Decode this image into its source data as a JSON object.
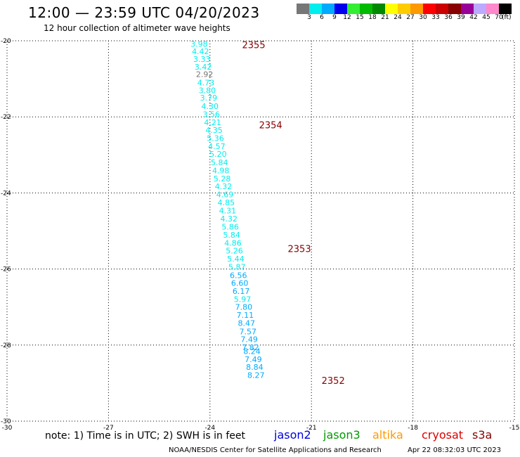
{
  "header": {
    "title": "12:00 — 23:59 UTC 04/20/2023",
    "subtitle": "12 hour collection of altimeter wave heights"
  },
  "colorbar": {
    "colors": [
      "#777777",
      "#00eeee",
      "#00aaff",
      "#0000ee",
      "#33ee33",
      "#00bb00",
      "#008800",
      "#ffff00",
      "#ffcc00",
      "#ff9900",
      "#ff0000",
      "#cc0000",
      "#880000",
      "#990099",
      "#bbaaff",
      "#ff88cc",
      "#000000"
    ],
    "ticks": [
      "3",
      "6",
      "9",
      "12",
      "15",
      "18",
      "21",
      "24",
      "27",
      "30",
      "33",
      "36",
      "39",
      "42",
      "45",
      "70"
    ],
    "unit": "(ft)"
  },
  "chart_data": {
    "type": "scatter",
    "title": "12:00 — 23:59 UTC 04/20/2023",
    "subtitle": "12 hour collection of altimeter wave heights",
    "xlim": [
      -30,
      -15
    ],
    "ylim": [
      -30,
      -20
    ],
    "x_ticks": [
      "-30",
      "-27",
      "-24",
      "-21",
      "-18",
      "-15"
    ],
    "y_ticks": [
      "-20",
      "-22",
      "-24",
      "-26",
      "-28",
      "-30"
    ],
    "grid": true,
    "swh_labels": [
      {
        "x": -24.32,
        "y": -20.08,
        "v": "3.98"
      },
      {
        "x": -24.28,
        "y": -20.28,
        "v": "4.42"
      },
      {
        "x": -24.24,
        "y": -20.48,
        "v": "3.33"
      },
      {
        "x": -24.2,
        "y": -20.68,
        "v": "3.42"
      },
      {
        "x": -24.16,
        "y": -20.88,
        "v": "2.92"
      },
      {
        "x": -24.12,
        "y": -21.1,
        "v": "4.73"
      },
      {
        "x": -24.08,
        "y": -21.3,
        "v": "3.80"
      },
      {
        "x": -24.04,
        "y": -21.5,
        "v": "3.79"
      },
      {
        "x": -24.0,
        "y": -21.72,
        "v": "4.30"
      },
      {
        "x": -23.96,
        "y": -21.93,
        "v": "3.56"
      },
      {
        "x": -23.92,
        "y": -22.14,
        "v": "4.21"
      },
      {
        "x": -23.88,
        "y": -22.35,
        "v": "4.35"
      },
      {
        "x": -23.84,
        "y": -22.56,
        "v": "5.36"
      },
      {
        "x": -23.8,
        "y": -22.77,
        "v": "4.57"
      },
      {
        "x": -23.76,
        "y": -22.98,
        "v": "5.20"
      },
      {
        "x": -23.72,
        "y": -23.2,
        "v": "5.84"
      },
      {
        "x": -23.68,
        "y": -23.41,
        "v": "4.98"
      },
      {
        "x": -23.64,
        "y": -23.62,
        "v": "5.28"
      },
      {
        "x": -23.6,
        "y": -23.83,
        "v": "4.32"
      },
      {
        "x": -23.56,
        "y": -24.04,
        "v": "4.69"
      },
      {
        "x": -23.52,
        "y": -24.25,
        "v": "4.85"
      },
      {
        "x": -23.48,
        "y": -24.46,
        "v": "4.31"
      },
      {
        "x": -23.44,
        "y": -24.68,
        "v": "4.32"
      },
      {
        "x": -23.4,
        "y": -24.89,
        "v": "5.86"
      },
      {
        "x": -23.36,
        "y": -25.1,
        "v": "5.84"
      },
      {
        "x": -23.32,
        "y": -25.31,
        "v": "4.86"
      },
      {
        "x": -23.28,
        "y": -25.52,
        "v": "5.26"
      },
      {
        "x": -23.24,
        "y": -25.73,
        "v": "5.44"
      },
      {
        "x": -23.2,
        "y": -25.94,
        "v": "5.87"
      },
      {
        "x": -23.16,
        "y": -26.16,
        "v": "6.56"
      },
      {
        "x": -23.12,
        "y": -26.37,
        "v": "6.60"
      },
      {
        "x": -23.08,
        "y": -26.58,
        "v": "6.17"
      },
      {
        "x": -23.04,
        "y": -26.79,
        "v": "5.97"
      },
      {
        "x": -23.0,
        "y": -27.0,
        "v": "7.80"
      },
      {
        "x": -22.96,
        "y": -27.21,
        "v": "7.11"
      },
      {
        "x": -22.92,
        "y": -27.42,
        "v": "8.47"
      },
      {
        "x": -22.88,
        "y": -27.64,
        "v": "7.57"
      },
      {
        "x": -22.84,
        "y": -27.85,
        "v": "7.49"
      },
      {
        "x": -22.8,
        "y": -28.06,
        "v": "7.82"
      },
      {
        "x": -22.76,
        "y": -28.16,
        "v": "8.24"
      },
      {
        "x": -22.72,
        "y": -28.37,
        "v": "7.49"
      },
      {
        "x": -22.68,
        "y": -28.58,
        "v": "8.84"
      },
      {
        "x": -22.64,
        "y": -28.79,
        "v": "8.27"
      }
    ],
    "pass_labels": [
      {
        "x": -23.05,
        "y": -20.1,
        "v": "2355"
      },
      {
        "x": -22.55,
        "y": -22.21,
        "v": "2354"
      },
      {
        "x": -21.7,
        "y": -25.46,
        "v": "2353"
      },
      {
        "x": -20.7,
        "y": -28.93,
        "v": "2352"
      }
    ]
  },
  "footer": {
    "note": "note:  1) Time is in UTC;  2) SWH is in feet",
    "missions": [
      {
        "name": "jason2",
        "color": "#0000dd"
      },
      {
        "name": "jason3",
        "color": "#009900"
      },
      {
        "name": "altika",
        "color": "#ff9900"
      },
      {
        "name": "cryosat",
        "color": "#dd0000"
      },
      {
        "name": "s3a",
        "color": "#880000"
      }
    ],
    "credit": "NOAA/NESDIS Center for Satellite Applications and Research",
    "timestamp": "Apr 22 08:32:03 UTC 2023"
  }
}
